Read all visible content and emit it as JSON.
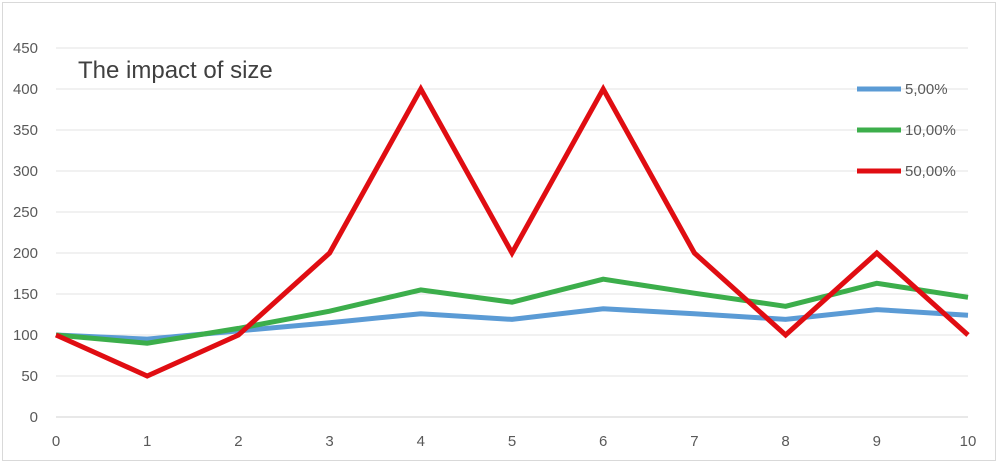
{
  "chart_data": {
    "type": "line",
    "title": "The impact of size",
    "xlabel": "",
    "ylabel": "",
    "x": [
      0,
      1,
      2,
      3,
      4,
      5,
      6,
      7,
      8,
      9,
      10
    ],
    "ylim": [
      0,
      450
    ],
    "yticks": [
      0,
      50,
      100,
      150,
      200,
      250,
      300,
      350,
      400,
      450
    ],
    "grid": true,
    "legend_position": "right",
    "series": [
      {
        "name": "5,00%",
        "color": "#5b9bd5",
        "values": [
          100,
          95,
          105,
          115,
          126,
          119,
          132,
          126,
          119,
          131,
          124
        ]
      },
      {
        "name": "10,00%",
        "color": "#3cae4b",
        "values": [
          100,
          90,
          108,
          129,
          155,
          140,
          168,
          151,
          135,
          163,
          146
        ]
      },
      {
        "name": "50,00%",
        "color": "#e00d12",
        "values": [
          100,
          50,
          100,
          200,
          400,
          200,
          400,
          200,
          100,
          200,
          100
        ]
      }
    ]
  }
}
